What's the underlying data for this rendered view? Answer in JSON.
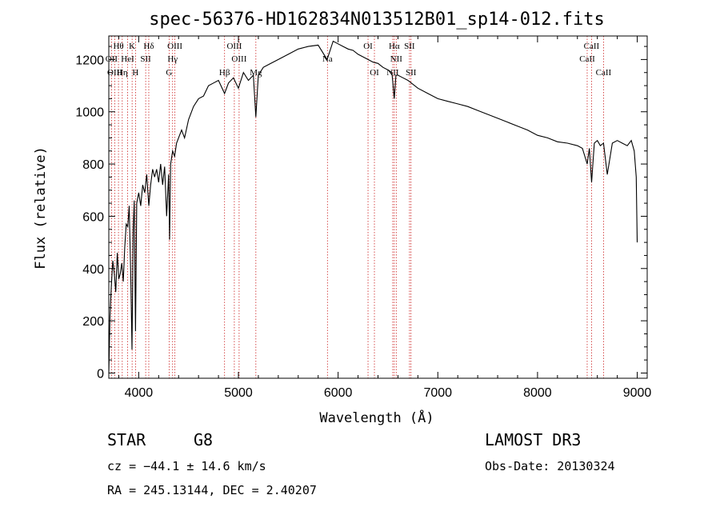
{
  "chart_data": {
    "type": "line",
    "title": "spec-56376-HD162834N013512B01_sp14-012.fits",
    "xlabel": "Wavelength (Å)",
    "ylabel": "Flux (relative)",
    "xlim": [
      3700,
      9100
    ],
    "ylim": [
      -20,
      1290
    ],
    "xticks": [
      4000,
      5000,
      6000,
      7000,
      8000,
      9000
    ],
    "yticks": [
      0,
      200,
      400,
      600,
      800,
      1000,
      1200
    ],
    "series": [
      {
        "name": "flux",
        "x": [
          3700,
          3712,
          3725,
          3740,
          3755,
          3770,
          3785,
          3800,
          3815,
          3830,
          3845,
          3860,
          3875,
          3890,
          3905,
          3920,
          3933,
          3945,
          3955,
          3968,
          3980,
          4000,
          4020,
          4040,
          4060,
          4080,
          4101,
          4120,
          4140,
          4160,
          4180,
          4200,
          4220,
          4240,
          4260,
          4280,
          4300,
          4310,
          4320,
          4340,
          4360,
          4380,
          4400,
          4430,
          4460,
          4500,
          4550,
          4600,
          4650,
          4700,
          4750,
          4800,
          4861,
          4900,
          4950,
          5000,
          5050,
          5100,
          5150,
          5175,
          5200,
          5250,
          5300,
          5400,
          5500,
          5600,
          5700,
          5800,
          5890,
          5950,
          6000,
          6050,
          6100,
          6150,
          6200,
          6250,
          6300,
          6350,
          6400,
          6450,
          6500,
          6540,
          6563,
          6580,
          6600,
          6650,
          6700,
          6800,
          6900,
          7000,
          7100,
          7200,
          7300,
          7400,
          7500,
          7600,
          7700,
          7800,
          7900,
          8000,
          8100,
          8200,
          8300,
          8400,
          8450,
          8498,
          8520,
          8542,
          8570,
          8600,
          8630,
          8662,
          8700,
          8750,
          8800,
          8850,
          8900,
          8940,
          8970,
          8990,
          9000
        ],
        "values": [
          0,
          220,
          330,
          430,
          380,
          310,
          460,
          360,
          380,
          420,
          350,
          480,
          570,
          560,
          640,
          380,
          90,
          550,
          660,
          160,
          650,
          690,
          640,
          720,
          690,
          760,
          640,
          720,
          780,
          750,
          780,
          730,
          800,
          720,
          790,
          600,
          760,
          510,
          800,
          850,
          830,
          880,
          900,
          930,
          900,
          970,
          1020,
          1050,
          1060,
          1100,
          1110,
          1120,
          1070,
          1110,
          1130,
          1090,
          1150,
          1120,
          1140,
          980,
          1140,
          1170,
          1180,
          1200,
          1220,
          1240,
          1250,
          1255,
          1200,
          1270,
          1260,
          1250,
          1240,
          1235,
          1220,
          1210,
          1200,
          1190,
          1185,
          1170,
          1160,
          1150,
          1050,
          1140,
          1140,
          1130,
          1120,
          1090,
          1070,
          1050,
          1040,
          1030,
          1020,
          1005,
          990,
          975,
          960,
          945,
          930,
          910,
          900,
          885,
          880,
          870,
          860,
          800,
          860,
          730,
          880,
          890,
          870,
          880,
          760,
          880,
          890,
          880,
          870,
          890,
          850,
          750,
          500
        ]
      }
    ],
    "lines": [
      {
        "name": "Hθ",
        "x": 3797,
        "pos": "top"
      },
      {
        "name": "OII",
        "x": 3727,
        "pos": "mid"
      },
      {
        "name": "OIII",
        "x": 3760,
        "pos": "bot"
      },
      {
        "name": "Hη",
        "x": 3835,
        "pos": "bot"
      },
      {
        "name": "HeI",
        "x": 3889,
        "pos": "mid"
      },
      {
        "name": "K",
        "x": 3934,
        "pos": "top"
      },
      {
        "name": "H",
        "x": 3968,
        "pos": "bot"
      },
      {
        "name": "SII",
        "x": 4070,
        "pos": "mid"
      },
      {
        "name": "Hδ",
        "x": 4101,
        "pos": "top"
      },
      {
        "name": "OIII",
        "x": 4363,
        "pos": "top"
      },
      {
        "name": "Hγ",
        "x": 4340,
        "pos": "mid"
      },
      {
        "name": "G",
        "x": 4305,
        "pos": "bot"
      },
      {
        "name": "Hβ",
        "x": 4861,
        "pos": "bot"
      },
      {
        "name": "OIII",
        "x": 4959,
        "pos": "top"
      },
      {
        "name": "OIII",
        "x": 5007,
        "pos": "mid"
      },
      {
        "name": "Mg",
        "x": 5175,
        "pos": "bot"
      },
      {
        "name": "Na",
        "x": 5893,
        "pos": "mid"
      },
      {
        "name": "OI",
        "x": 6300,
        "pos": "top"
      },
      {
        "name": "OI",
        "x": 6364,
        "pos": "bot"
      },
      {
        "name": "NII",
        "x": 6548,
        "pos": "bot"
      },
      {
        "name": "Hα",
        "x": 6563,
        "pos": "top"
      },
      {
        "name": "NII",
        "x": 6583,
        "pos": "mid"
      },
      {
        "name": "SII",
        "x": 6716,
        "pos": "top"
      },
      {
        "name": "SII",
        "x": 6731,
        "pos": "bot"
      },
      {
        "name": "CaII",
        "x": 8498,
        "pos": "mid"
      },
      {
        "name": "CaII",
        "x": 8542,
        "pos": "top"
      },
      {
        "name": "CaII",
        "x": 8662,
        "pos": "bot"
      }
    ]
  },
  "info": {
    "class": "STAR",
    "subclass": "G8",
    "survey": "LAMOST DR3",
    "cz": "cz = −44.1 ± 14.6 km/s",
    "obs_date": "Obs-Date: 20130324",
    "coords": "RA = 245.13144, DEC =   2.40207"
  },
  "colors": {
    "line": "#000000",
    "marker": "#cc2222"
  }
}
